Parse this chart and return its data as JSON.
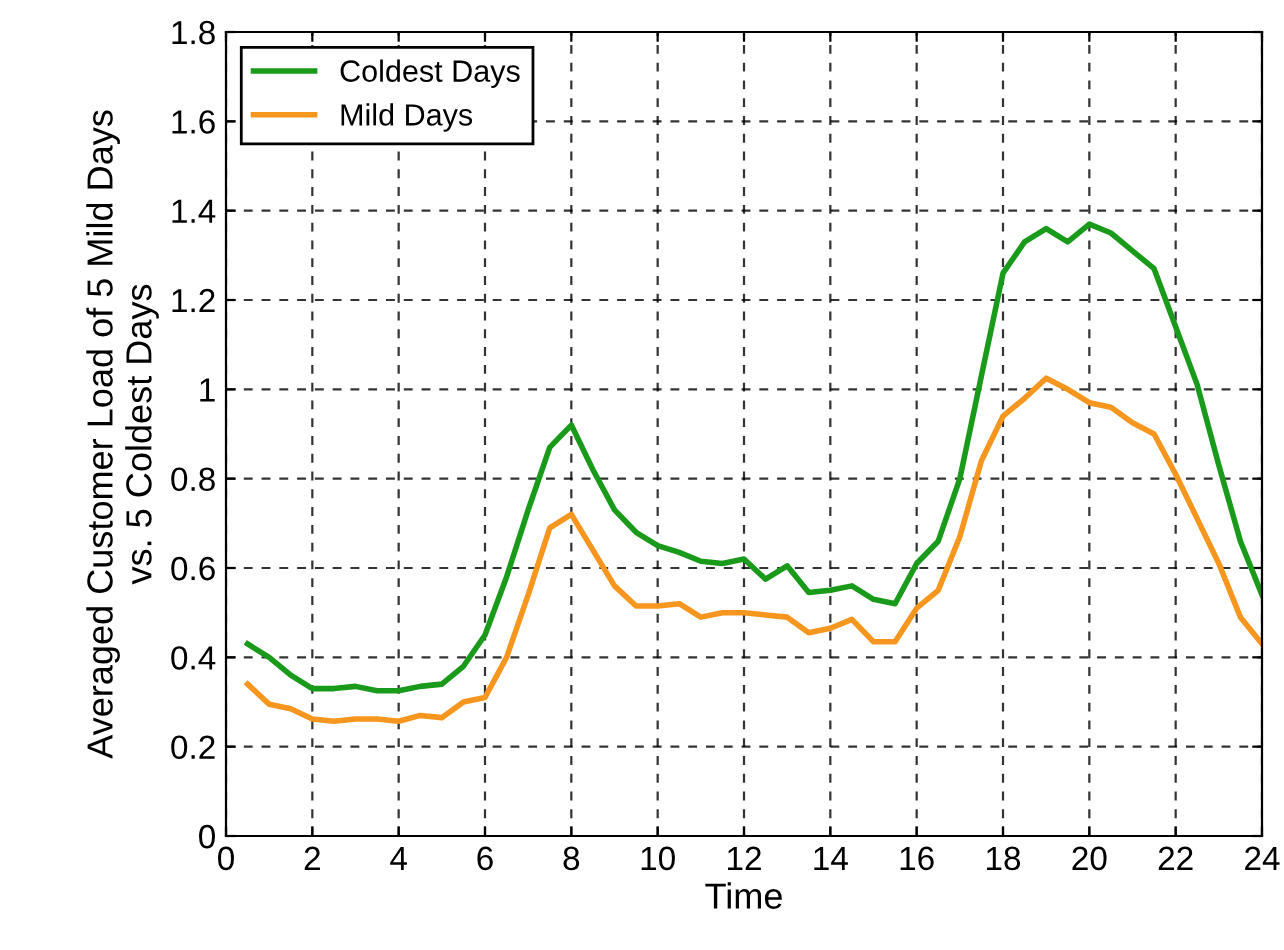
{
  "chart_data": {
    "type": "line",
    "xlabel": "Time",
    "ylabel": "Averaged Customer Load of 5 Mild Days\nvs. 5 Coldest Days",
    "x": [
      0.5,
      1,
      1.5,
      2,
      2.5,
      3,
      3.5,
      4,
      4.5,
      5,
      5.5,
      6,
      6.5,
      7,
      7.5,
      8,
      8.5,
      9,
      9.5,
      10,
      10.5,
      11,
      11.5,
      12,
      12.5,
      13,
      13.5,
      14,
      14.5,
      15,
      15.5,
      16,
      16.5,
      17,
      17.5,
      18,
      18.5,
      19,
      19.5,
      20,
      20.5,
      21,
      21.5,
      22,
      22.5,
      23,
      23.5,
      24
    ],
    "series": [
      {
        "name": "Coldest Days",
        "color": "#1a9a1a",
        "values": [
          0.43,
          0.4,
          0.36,
          0.33,
          0.33,
          0.335,
          0.325,
          0.325,
          0.335,
          0.34,
          0.38,
          0.45,
          0.58,
          0.73,
          0.87,
          0.92,
          0.82,
          0.73,
          0.68,
          0.65,
          0.635,
          0.615,
          0.61,
          0.62,
          0.575,
          0.605,
          0.545,
          0.55,
          0.56,
          0.53,
          0.52,
          0.61,
          0.66,
          0.8,
          1.03,
          1.26,
          1.33,
          1.36,
          1.33,
          1.37,
          1.35,
          1.31,
          1.27,
          1.14,
          1.01,
          0.83,
          0.66,
          0.54
        ]
      },
      {
        "name": "Mild Days",
        "color": "#f7961e",
        "values": [
          0.34,
          0.295,
          0.285,
          0.262,
          0.257,
          0.262,
          0.262,
          0.257,
          0.27,
          0.265,
          0.3,
          0.31,
          0.4,
          0.54,
          0.69,
          0.72,
          0.64,
          0.56,
          0.515,
          0.515,
          0.52,
          0.49,
          0.5,
          0.5,
          0.495,
          0.49,
          0.455,
          0.465,
          0.485,
          0.435,
          0.435,
          0.51,
          0.55,
          0.67,
          0.84,
          0.94,
          0.98,
          1.025,
          1.0,
          0.97,
          0.96,
          0.925,
          0.9,
          0.81,
          0.71,
          0.61,
          0.49,
          0.43
        ]
      }
    ],
    "xlim": [
      0,
      24
    ],
    "xticks": [
      0,
      2,
      4,
      6,
      8,
      10,
      12,
      14,
      16,
      18,
      20,
      22,
      24
    ],
    "ylim": [
      0,
      1.8
    ],
    "yticks": [
      0,
      0.2,
      0.4,
      0.6,
      0.8,
      1,
      1.2,
      1.4,
      1.6,
      1.8
    ],
    "grid": true,
    "legend": "top left",
    "line_style": "solid"
  }
}
